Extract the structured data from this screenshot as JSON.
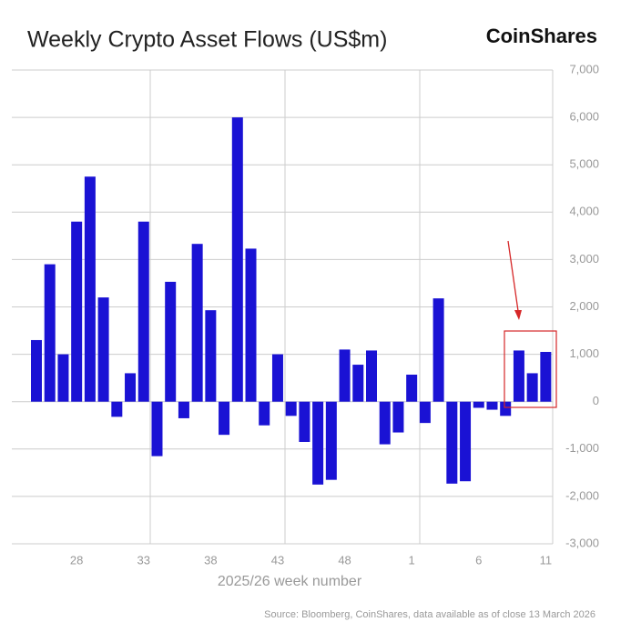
{
  "chart_data": {
    "type": "bar",
    "title": "Weekly Crypto Asset Flows (US$m)",
    "brand": "CoinShares",
    "x_label": "2025/26 week number",
    "source": "Source: Bloomberg, CoinShares, data available as of close 13 March 2026",
    "categories": [
      null,
      null,
      null,
      "28",
      null,
      null,
      null,
      null,
      "33",
      null,
      null,
      null,
      null,
      "38",
      null,
      null,
      null,
      null,
      "43",
      null,
      null,
      null,
      null,
      "48",
      null,
      null,
      null,
      null,
      "1",
      null,
      null,
      null,
      null,
      "6",
      null,
      null,
      null,
      null,
      "11"
    ],
    "values": [
      1300,
      2900,
      1000,
      3800,
      4750,
      2200,
      -320,
      600,
      3800,
      -1150,
      2530,
      -350,
      3330,
      1930,
      -700,
      6000,
      3230,
      -500,
      1000,
      -300,
      -850,
      -1750,
      -1650,
      1100,
      780,
      1080,
      -900,
      -650,
      570,
      -450,
      2180,
      -1730,
      -1680,
      -130,
      -170,
      -300,
      1080,
      600,
      1050
    ],
    "color": "#1a12d4",
    "ylim": [
      -3000,
      7000
    ],
    "yticks": [
      {
        "value": -3000,
        "label": "-3,000"
      },
      {
        "value": -2000,
        "label": "-2,000"
      },
      {
        "value": -1000,
        "label": "-1,000"
      },
      0,
      {
        "value": 1000,
        "label": "1,000"
      },
      {
        "value": 2000,
        "label": "2,000"
      },
      {
        "value": 3000,
        "label": "3,000"
      },
      {
        "value": 4000,
        "label": "4,000"
      },
      {
        "value": 5000,
        "label": "5,000"
      },
      {
        "value": 6000,
        "label": "6,000"
      },
      {
        "value": 7000,
        "label": "7,000"
      }
    ],
    "grid": true
  }
}
